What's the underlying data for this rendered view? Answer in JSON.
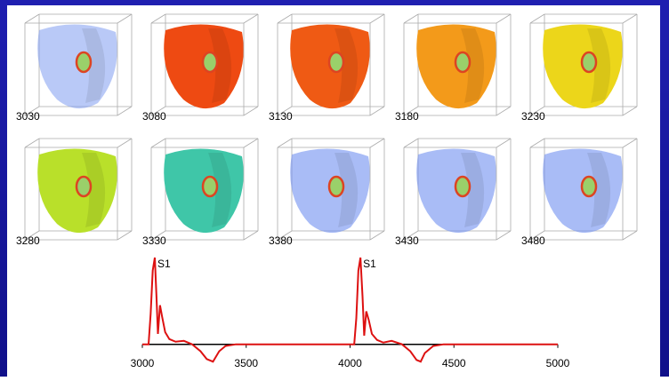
{
  "panels": [
    {
      "label": "3030"
    },
    {
      "label": "3080"
    },
    {
      "label": "3130"
    },
    {
      "label": "3180"
    },
    {
      "label": "3230"
    },
    {
      "label": "3280"
    },
    {
      "label": "3330"
    },
    {
      "label": "3380"
    },
    {
      "label": "3430"
    },
    {
      "label": "3480"
    }
  ],
  "chart_data": {
    "type": "line",
    "annotations": [
      "S1",
      "S1"
    ],
    "x": [
      3000,
      3030,
      3040,
      3050,
      3060,
      3068,
      3075,
      3085,
      3095,
      3110,
      3130,
      3160,
      3200,
      3240,
      3280,
      3310,
      3340,
      3370,
      3400,
      3450,
      3500,
      3700,
      4000,
      4020,
      4030,
      4040,
      4050,
      4060,
      4068,
      4078,
      4090,
      4105,
      4130,
      4160,
      4200,
      4250,
      4290,
      4320,
      4340,
      4360,
      4400,
      4450,
      4500,
      4700,
      5000
    ],
    "values": [
      0,
      0,
      0.35,
      0.85,
      1.0,
      0.55,
      0.12,
      0.45,
      0.32,
      0.14,
      0.06,
      0.03,
      0.04,
      0,
      -0.08,
      -0.17,
      -0.2,
      -0.08,
      -0.02,
      0,
      0,
      0,
      0,
      0,
      0.3,
      0.85,
      1.0,
      0.55,
      0.1,
      0.38,
      0.28,
      0.12,
      0.05,
      0.02,
      0.04,
      0,
      -0.08,
      -0.18,
      -0.2,
      -0.1,
      -0.02,
      0,
      0,
      0,
      0
    ],
    "color": "#dd1111",
    "xlim": [
      3000,
      5000
    ],
    "ylim": [
      -0.3,
      1
    ],
    "xticks": [
      3000,
      3500,
      4000,
      4500,
      5000
    ]
  }
}
